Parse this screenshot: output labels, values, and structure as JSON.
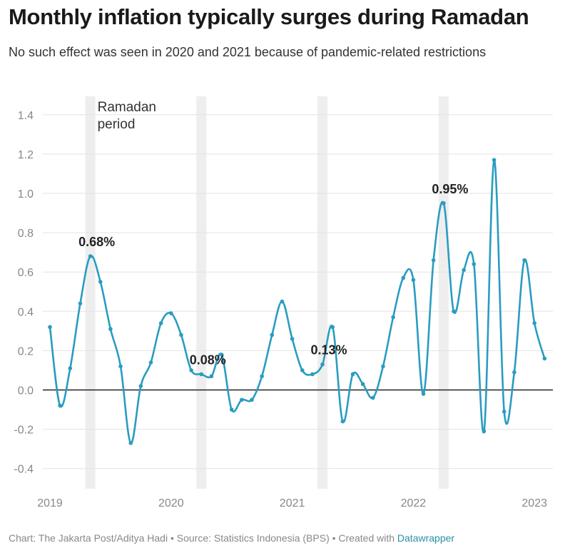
{
  "header": {
    "title": "Monthly inflation typically surges during Ramadan",
    "subtitle": "No such effect was seen in 2020 and 2021 because of pandemic-related restrictions"
  },
  "footer": {
    "credit": "Chart: The Jakarta Post/Aditya Hadi • Source: Statistics Indonesia (BPS) • Created with ",
    "tool": "Datawrapper"
  },
  "colors": {
    "line": "#2a9cc0",
    "band": "#eeeeee",
    "grid": "#e3e3e3",
    "zero": "#222222"
  },
  "chart_data": {
    "type": "line",
    "ylabel": "",
    "ylim": [
      -0.5,
      1.5
    ],
    "yticks": [
      1.4,
      1.2,
      1.0,
      0.8,
      0.6,
      0.4,
      0.2,
      0.0,
      -0.2,
      -0.4
    ],
    "ytick_labels": [
      "1.4",
      "1.2",
      "1.0",
      "0.8",
      "0.6",
      "0.4",
      "0.2",
      "0.0",
      "-0.2",
      "-0.4"
    ],
    "xticks": [
      2019,
      2020,
      2021,
      2022,
      2023
    ],
    "xtick_labels": [
      "2019",
      "2020",
      "2021",
      "2022",
      "2023"
    ],
    "grid": true,
    "band_label_lines": [
      "Ramadan",
      "period"
    ],
    "ramadan_bands": [
      {
        "from": "2019-05",
        "to": "2019-05"
      },
      {
        "from": "2020-04",
        "to": "2020-04"
      },
      {
        "from": "2021-04",
        "to": "2021-04"
      },
      {
        "from": "2022-04",
        "to": "2022-04"
      }
    ],
    "series": [
      {
        "dates": [
          "2019-01",
          "2019-02",
          "2019-03",
          "2019-04",
          "2019-05",
          "2019-06",
          "2019-07",
          "2019-08",
          "2019-09",
          "2019-10",
          "2019-11",
          "2019-12",
          "2020-01",
          "2020-02",
          "2020-03",
          "2020-04",
          "2020-05",
          "2020-06",
          "2020-07",
          "2020-08",
          "2020-09",
          "2020-10",
          "2020-11",
          "2020-12",
          "2021-01",
          "2021-02",
          "2021-03",
          "2021-04",
          "2021-05",
          "2021-06",
          "2021-07",
          "2021-08",
          "2021-09",
          "2021-10",
          "2021-11",
          "2021-12",
          "2022-01",
          "2022-02",
          "2022-03",
          "2022-04",
          "2022-05",
          "2022-06",
          "2022-07",
          "2022-08",
          "2022-09",
          "2022-10",
          "2022-11",
          "2022-12",
          "2023-01",
          "2023-02"
        ],
        "values": [
          0.32,
          -0.08,
          0.11,
          0.44,
          0.68,
          0.55,
          0.31,
          0.12,
          -0.27,
          0.02,
          0.14,
          0.34,
          0.39,
          0.28,
          0.1,
          0.08,
          0.07,
          0.18,
          -0.1,
          -0.05,
          -0.05,
          0.07,
          0.28,
          0.45,
          0.26,
          0.1,
          0.08,
          0.13,
          0.32,
          -0.16,
          0.08,
          0.03,
          -0.04,
          0.12,
          0.37,
          0.57,
          0.56,
          -0.02,
          0.66,
          0.95,
          0.4,
          0.61,
          0.64,
          -0.21,
          1.17,
          -0.11,
          0.09,
          0.66,
          0.34,
          0.16
        ]
      }
    ],
    "annotations": [
      {
        "date": "2019-05",
        "value": 0.68,
        "text": "0.68%"
      },
      {
        "date": "2020-04",
        "value": 0.08,
        "text": "0.08%"
      },
      {
        "date": "2021-04",
        "value": 0.13,
        "text": "0.13%"
      },
      {
        "date": "2022-04",
        "value": 0.95,
        "text": "0.95%"
      }
    ]
  }
}
